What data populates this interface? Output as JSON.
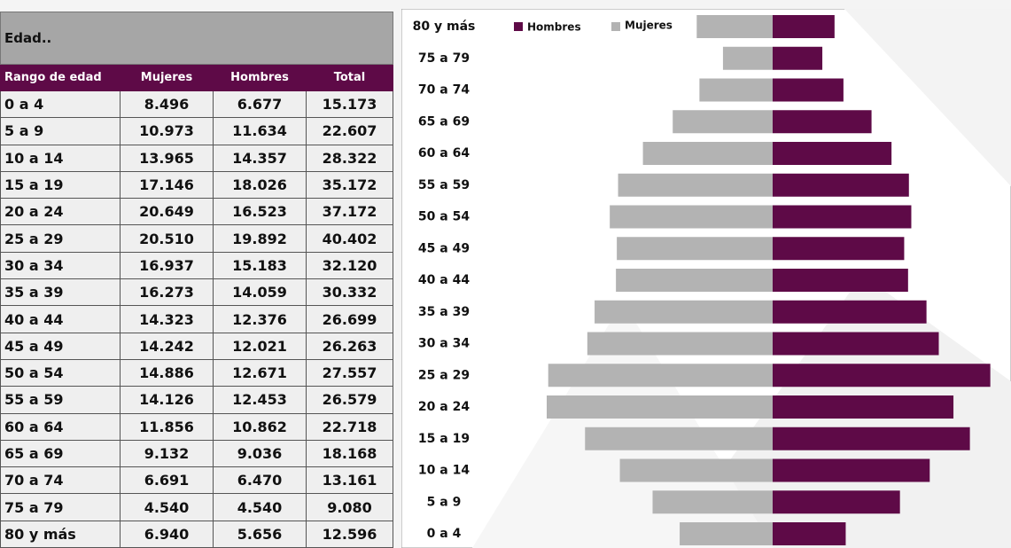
{
  "table": {
    "title": "Edad..",
    "header": [
      "Rango de edad",
      "Mujeres",
      "Hombres",
      "Total"
    ],
    "rows": [
      [
        "0 a 4",
        "8.496",
        "6.677",
        "15.173"
      ],
      [
        "5 a 9",
        "10.973",
        "11.634",
        "22.607"
      ],
      [
        "10 a 14",
        "13.965",
        "14.357",
        "28.322"
      ],
      [
        "15 a 19",
        "17.146",
        "18.026",
        "35.172"
      ],
      [
        "20 a 24",
        "20.649",
        "16.523",
        "37.172"
      ],
      [
        "25 a 29",
        "20.510",
        "19.892",
        "40.402"
      ],
      [
        "30 a 34",
        "16.937",
        "15.183",
        "32.120"
      ],
      [
        "35 a 39",
        "16.273",
        "14.059",
        "30.332"
      ],
      [
        "40 a 44",
        "14.323",
        "12.376",
        "26.699"
      ],
      [
        "45 a 49",
        "14.242",
        "12.021",
        "26.263"
      ],
      [
        "50 a 54",
        "14.886",
        "12.671",
        "27.557"
      ],
      [
        "55 a 59",
        "14.126",
        "12.453",
        "26.579"
      ],
      [
        "60 a 64",
        "11.856",
        "10.862",
        "22.718"
      ],
      [
        "65 a 69",
        "9.132",
        "9.036",
        "18.168"
      ],
      [
        "70 a 74",
        "6.691",
        "6.470",
        "13.161"
      ],
      [
        "75 a 79",
        "4.540",
        "4.540",
        "9.080"
      ],
      [
        "80 y más",
        "6.940",
        "5.656",
        "12.596"
      ]
    ]
  },
  "chart_data": {
    "type": "pyramid",
    "categories": [
      "80 y más",
      "75 a 79",
      "70 a 74",
      "65 a 69",
      "60 a 64",
      "55 a 59",
      "50 a 54",
      "45 a 49",
      "40 a 44",
      "35 a 39",
      "30 a 34",
      "25 a 29",
      "20 a 24",
      "15 a 19",
      "10 a 14",
      "5 a 9",
      "0 a 4"
    ],
    "series": [
      {
        "name": "Hombres",
        "color": "#5e0a47",
        "values": [
          5656,
          4540,
          6470,
          9036,
          10862,
          12453,
          12671,
          12021,
          12376,
          14059,
          15183,
          19892,
          16523,
          18026,
          14357,
          11634,
          6677
        ]
      },
      {
        "name": "Mujeres",
        "color": "#b3b3b3",
        "values": [
          6940,
          4540,
          6691,
          9132,
          11856,
          14126,
          14886,
          14242,
          14323,
          16273,
          16937,
          20510,
          20649,
          17146,
          13965,
          10973,
          8496
        ]
      }
    ]
  }
}
